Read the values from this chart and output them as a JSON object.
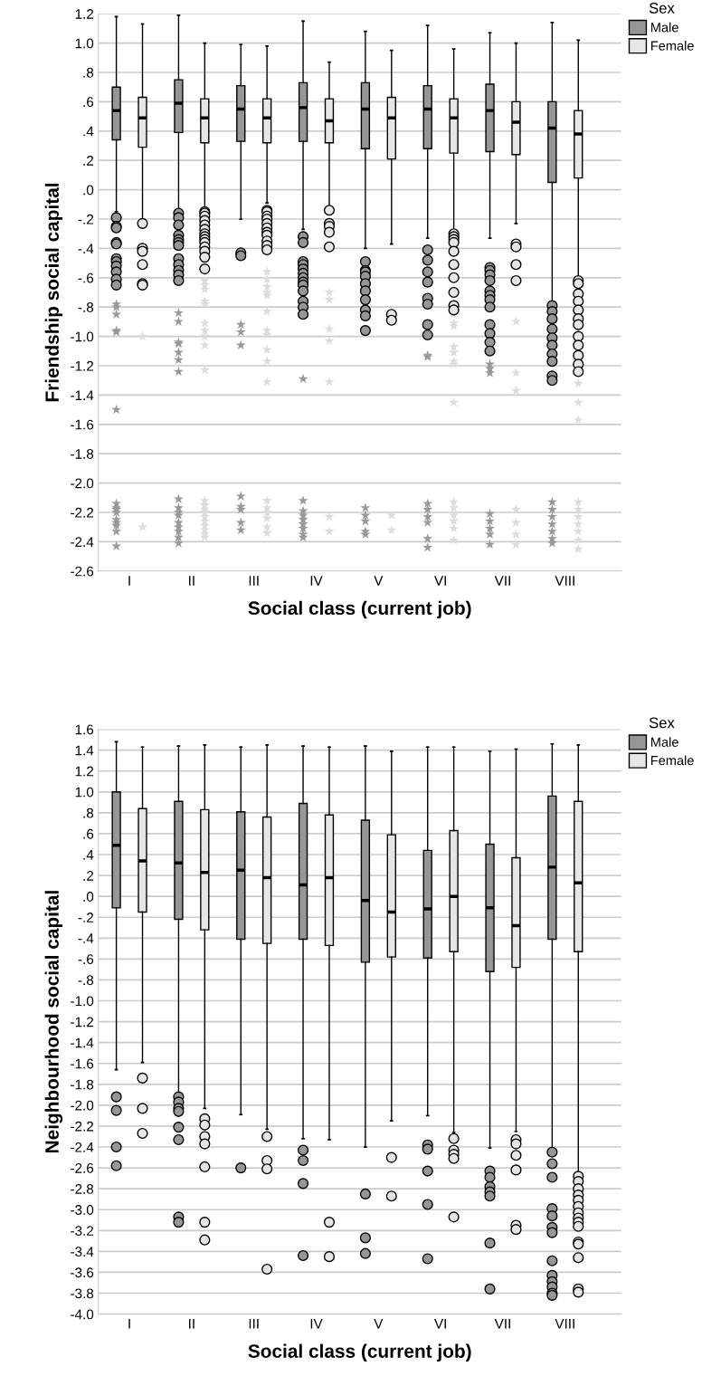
{
  "chart_data": [
    {
      "type": "box",
      "xlabel": "Social class (current job)",
      "ylabel": "Friendship social capital",
      "legend_title": "Sex",
      "legend": "right",
      "grid": "y",
      "marker": "circle",
      "categories": [
        "I",
        "II",
        "III",
        "IV",
        "V",
        "VI",
        "VII",
        "VIII"
      ],
      "ylim": [
        -2.6,
        1.2
      ],
      "yticks": [
        1.2,
        {
          "value": 1,
          "label": "1.0"
        },
        {
          "value": 0.8,
          "label": ".8"
        },
        {
          "value": 0.6,
          "label": ".6"
        },
        {
          "value": 0.4,
          "label": ".4"
        },
        {
          "value": 0.2,
          "label": ".2"
        },
        {
          "value": 0.0,
          "label": ".0"
        },
        {
          "value": -0.2,
          "label": "-.2"
        },
        {
          "value": -0.4,
          "label": "-.4"
        },
        {
          "value": -0.6,
          "label": "-.6"
        },
        {
          "value": -0.8,
          "label": "-.8"
        },
        {
          "value": -1,
          "label": "-1.0"
        },
        -1.2,
        -1.4,
        -1.6,
        -1.8,
        {
          "value": -2,
          "label": "-2.0"
        },
        -2.2,
        -2.4,
        -2.6
      ],
      "series": [
        {
          "name": "Male",
          "color": "#969696",
          "boxes": [
            {
              "low": -0.15,
              "q1": 0.34,
              "median": 0.54,
              "q3": 0.7,
              "high": 1.18,
              "outliers": [
                -0.19,
                -0.25,
                -0.26,
                -0.36,
                -0.37,
                -0.47,
                -0.49,
                -0.52,
                -0.56,
                -0.61,
                -0.65
              ]
            },
            {
              "low": -0.15,
              "q1": 0.39,
              "median": 0.59,
              "q3": 0.75,
              "high": 1.19,
              "outliers": [
                -0.16,
                -0.19,
                -0.24,
                -0.31,
                -0.34,
                -0.36,
                -0.38,
                -0.47,
                -0.51,
                -0.55,
                -0.58,
                -0.62
              ]
            },
            {
              "low": -0.2,
              "q1": 0.33,
              "median": 0.55,
              "q3": 0.71,
              "high": 0.99,
              "outliers": [
                -0.43,
                -0.45
              ]
            },
            {
              "low": -0.27,
              "q1": 0.33,
              "median": 0.56,
              "q3": 0.73,
              "high": 1.15,
              "outliers": [
                -0.32,
                -0.36,
                -0.49,
                -0.51,
                -0.54,
                -0.57,
                -0.6,
                -0.63,
                -0.65,
                -0.69,
                -0.76,
                -0.8,
                -0.85
              ]
            },
            {
              "low": -0.4,
              "q1": 0.28,
              "median": 0.55,
              "q3": 0.73,
              "high": 1.08,
              "outliers": [
                -0.49,
                -0.55,
                -0.56,
                -0.59,
                -0.64,
                -0.69,
                -0.75,
                -0.82,
                -0.86,
                -0.96
              ]
            },
            {
              "low": -0.33,
              "q1": 0.28,
              "median": 0.55,
              "q3": 0.71,
              "high": 1.12,
              "outliers": [
                -0.41,
                -0.48,
                -0.56,
                -0.63,
                -0.74,
                -0.78,
                -0.92,
                -0.99
              ]
            },
            {
              "low": -0.33,
              "q1": 0.26,
              "median": 0.54,
              "q3": 0.72,
              "high": 1.07,
              "outliers": [
                -0.53,
                -0.55,
                -0.58,
                -0.62,
                -0.69,
                -0.72,
                -0.75,
                -0.8,
                -0.92,
                -0.98,
                -1.04,
                -1.1
              ]
            },
            {
              "low": -0.78,
              "q1": 0.05,
              "median": 0.42,
              "q3": 0.6,
              "high": 1.14,
              "outliers": [
                -0.79,
                -0.83,
                -0.88,
                -0.95,
                -1.01,
                -1.06,
                -1.12,
                -1.17,
                -1.27,
                -1.3
              ]
            }
          ]
        },
        {
          "name": "Female",
          "color": "#e6e6e6",
          "boxes": [
            {
              "low": -0.2,
              "q1": 0.29,
              "median": 0.49,
              "q3": 0.63,
              "high": 1.13,
              "outliers": [
                -0.23,
                -0.4,
                -0.42,
                -0.51,
                -0.64,
                -0.65
              ]
            },
            {
              "low": -0.13,
              "q1": 0.32,
              "median": 0.49,
              "q3": 0.62,
              "high": 1.0,
              "outliers": [
                -0.15,
                -0.16,
                -0.18,
                -0.21,
                -0.24,
                -0.27,
                -0.3,
                -0.32,
                -0.34,
                -0.36,
                -0.39,
                -0.42,
                -0.46,
                -0.54
              ]
            },
            {
              "low": -0.09,
              "q1": 0.32,
              "median": 0.49,
              "q3": 0.62,
              "high": 0.98,
              "outliers": [
                -0.14,
                -0.15,
                -0.18,
                -0.2,
                -0.23,
                -0.26,
                -0.29,
                -0.31,
                -0.35,
                -0.38,
                -0.41
              ]
            },
            {
              "low": -0.14,
              "q1": 0.32,
              "median": 0.47,
              "q3": 0.62,
              "high": 0.87,
              "outliers": [
                -0.14,
                -0.23,
                -0.25,
                -0.29,
                -0.39
              ]
            },
            {
              "low": -0.37,
              "q1": 0.21,
              "median": 0.49,
              "q3": 0.63,
              "high": 0.95,
              "outliers": [
                -0.85,
                -0.89
              ]
            },
            {
              "low": -0.28,
              "q1": 0.25,
              "median": 0.49,
              "q3": 0.62,
              "high": 0.96,
              "outliers": [
                -0.3,
                -0.32,
                -0.34,
                -0.36,
                -0.42,
                -0.51,
                -0.6,
                -0.7,
                -0.79,
                -0.82
              ]
            },
            {
              "low": -0.23,
              "q1": 0.24,
              "median": 0.46,
              "q3": 0.6,
              "high": 1.0,
              "outliers": [
                -0.37,
                -0.39,
                -0.51,
                -0.62
              ]
            },
            {
              "low": -0.6,
              "q1": 0.08,
              "median": 0.38,
              "q3": 0.54,
              "high": 1.02,
              "outliers": [
                -0.62,
                -0.64,
                -0.71,
                -0.76,
                -0.82,
                -0.88,
                -0.92,
                -1.0,
                -1.06,
                -1.13,
                -1.19,
                -1.24
              ]
            }
          ]
        },
        {
          "type": "scatter",
          "marker": "star",
          "color": "#999999",
          "x": [
            "I",
            "I",
            "I",
            "I",
            "I",
            "I",
            "I",
            "I",
            "I",
            "I",
            "I",
            "I",
            "I",
            "I",
            "I",
            "II",
            "II",
            "II",
            "II",
            "II",
            "II",
            "II",
            "II",
            "II",
            "II",
            "II",
            "II",
            "II",
            "II",
            "II",
            "II",
            "III",
            "III",
            "III",
            "III",
            "III",
            "III",
            "III",
            "III",
            "IV",
            "IV",
            "IV",
            "IV",
            "IV",
            "IV",
            "IV",
            "IV",
            "IV",
            "V",
            "V",
            "V",
            "V",
            "V",
            "VI",
            "VI",
            "VI",
            "VI",
            "VI",
            "VI",
            "VI",
            "VI",
            "VII",
            "VII",
            "VII",
            "VII",
            "VII",
            "VII",
            "VII",
            "VII",
            "VIII",
            "VIII",
            "VIII",
            "VIII",
            "VIII",
            "VIII",
            "VIII"
          ],
          "values": [
            -0.78,
            -0.8,
            -0.85,
            -0.96,
            -0.97,
            -1.5,
            -2.14,
            -2.17,
            -2.18,
            -2.2,
            -2.25,
            -2.27,
            -2.29,
            -2.33,
            -2.43,
            -0.84,
            -0.9,
            -1.04,
            -1.05,
            -1.11,
            -1.16,
            -1.24,
            -2.11,
            -2.17,
            -2.2,
            -2.22,
            -2.27,
            -2.3,
            -2.33,
            -2.37,
            -2.41,
            -0.92,
            -0.97,
            -1.06,
            -2.09,
            -2.16,
            -2.18,
            -2.27,
            -2.32,
            -1.29,
            -2.12,
            -2.19,
            -2.22,
            -2.25,
            -2.28,
            -2.31,
            -2.35,
            -2.37,
            -2.17,
            -2.22,
            -2.26,
            -2.33,
            -2.35,
            -1.13,
            -1.14,
            -2.14,
            -2.18,
            -2.23,
            -2.27,
            -2.38,
            -2.44,
            -1.19,
            -1.22,
            -1.25,
            -2.21,
            -2.26,
            -2.31,
            -2.35,
            -2.42,
            -2.13,
            -2.18,
            -2.23,
            -2.28,
            -2.33,
            -2.38,
            -2.41
          ]
        },
        {
          "type": "scatter",
          "marker": "star",
          "color": "#dcdcdc",
          "x": [
            "I",
            "I",
            "II",
            "II",
            "II",
            "II",
            "II",
            "II",
            "II",
            "II",
            "II",
            "II",
            "II",
            "II",
            "II",
            "II",
            "II",
            "II",
            "II",
            "II",
            "II",
            "II",
            "III",
            "III",
            "III",
            "III",
            "III",
            "III",
            "III",
            "III",
            "III",
            "III",
            "III",
            "III",
            "III",
            "III",
            "III",
            "III",
            "III",
            "IV",
            "IV",
            "IV",
            "IV",
            "IV",
            "IV",
            "IV",
            "V",
            "V",
            "VI",
            "VI",
            "VI",
            "VI",
            "VI",
            "VI",
            "VI",
            "VI",
            "VI",
            "VI",
            "VI",
            "VI",
            "VI",
            "VI",
            "VII",
            "VII",
            "VII",
            "VII",
            "VII",
            "VII",
            "VII",
            "VIII",
            "VIII",
            "VIII",
            "VIII",
            "VIII",
            "VIII",
            "VIII",
            "VIII",
            "VIII",
            "VIII"
          ],
          "values": [
            -1.0,
            -2.3,
            -0.62,
            -0.65,
            -0.68,
            -0.76,
            -0.78,
            -0.91,
            -0.96,
            -1.0,
            -1.06,
            -1.23,
            -2.12,
            -2.15,
            -2.18,
            -2.2,
            -2.23,
            -2.26,
            -2.29,
            -2.32,
            -2.35,
            -2.37,
            -0.56,
            -0.61,
            -0.66,
            -0.7,
            -0.72,
            -0.83,
            -0.96,
            -0.99,
            -1.09,
            -1.17,
            -1.31,
            -2.12,
            -2.17,
            -2.2,
            -2.24,
            -2.3,
            -2.34,
            -0.7,
            -0.75,
            -0.95,
            -1.03,
            -1.31,
            -2.23,
            -2.33,
            -2.22,
            -2.32,
            -0.85,
            -0.91,
            -0.93,
            -1.07,
            -1.11,
            -1.17,
            -1.19,
            -1.45,
            -2.13,
            -2.17,
            -2.22,
            -2.26,
            -2.31,
            -2.39,
            -0.9,
            -1.25,
            -1.37,
            -2.18,
            -2.27,
            -2.35,
            -2.42,
            -1.32,
            -1.45,
            -1.57,
            -2.13,
            -2.18,
            -2.23,
            -2.28,
            -2.33,
            -2.39,
            -2.45
          ]
        }
      ]
    },
    {
      "type": "box",
      "xlabel": "Social class (current job)",
      "ylabel": "Neighbourhood social capital",
      "legend_title": "Sex",
      "legend": "right",
      "grid": "y",
      "marker": "circle",
      "categories": [
        "I",
        "II",
        "III",
        "IV",
        "V",
        "VI",
        "VII",
        "VIII"
      ],
      "ylim": [
        -4.0,
        1.6
      ],
      "yticks": [
        1.6,
        1.4,
        1.2,
        {
          "value": 1,
          "label": "1.0"
        },
        {
          "value": 0.8,
          "label": ".8"
        },
        {
          "value": 0.6,
          "label": ".6"
        },
        {
          "value": 0.4,
          "label": ".4"
        },
        {
          "value": 0.2,
          "label": ".2"
        },
        {
          "value": 0.0,
          "label": ".0"
        },
        {
          "value": -0.2,
          "label": "-.2"
        },
        {
          "value": -0.4,
          "label": "-.4"
        },
        {
          "value": -0.6,
          "label": "-.6"
        },
        {
          "value": -0.8,
          "label": "-.8"
        },
        {
          "value": -1,
          "label": "-1.0"
        },
        -1.2,
        -1.4,
        -1.6,
        -1.8,
        {
          "value": -2,
          "label": "-2.0"
        },
        -2.2,
        -2.4,
        -2.6,
        -2.8,
        {
          "value": -3,
          "label": "-3.0"
        },
        -3.2,
        -3.4,
        -3.6,
        -3.8,
        {
          "value": -4,
          "label": "-4.0"
        }
      ],
      "series": [
        {
          "name": "Male",
          "color": "#969696",
          "boxes": [
            {
              "low": -1.66,
              "q1": -0.11,
              "median": 0.49,
              "q3": 1.0,
              "high": 1.48,
              "outliers": [
                -1.92,
                -2.05,
                -2.4,
                -2.58
              ]
            },
            {
              "low": -1.88,
              "q1": -0.22,
              "median": 0.32,
              "q3": 0.91,
              "high": 1.44,
              "outliers": [
                -1.92,
                -1.97,
                -2.03,
                -2.06,
                -2.21,
                -2.33,
                -3.07,
                -3.12
              ]
            },
            {
              "low": -2.09,
              "q1": -0.41,
              "median": 0.25,
              "q3": 0.81,
              "high": 1.43,
              "outliers": [
                -2.6
              ]
            },
            {
              "low": -2.32,
              "q1": -0.41,
              "median": 0.11,
              "q3": 0.89,
              "high": 1.44,
              "outliers": [
                -2.43,
                -2.53,
                -2.75,
                -3.44
              ]
            },
            {
              "low": -2.4,
              "q1": -0.63,
              "median": -0.04,
              "q3": 0.73,
              "high": 1.44,
              "outliers": [
                -2.85,
                -3.27,
                -3.42
              ]
            },
            {
              "low": -2.1,
              "q1": -0.59,
              "median": -0.12,
              "q3": 0.44,
              "high": 1.43,
              "outliers": [
                -2.38,
                -2.42,
                -2.63,
                -2.95,
                -3.47
              ]
            },
            {
              "low": -2.41,
              "q1": -0.72,
              "median": -0.11,
              "q3": 0.5,
              "high": 1.39,
              "outliers": [
                -2.63,
                -2.69,
                -2.78,
                -2.83,
                -2.87,
                -3.32,
                -3.76
              ]
            },
            {
              "low": -2.41,
              "q1": -0.41,
              "median": 0.28,
              "q3": 0.96,
              "high": 1.46,
              "outliers": [
                -2.45,
                -2.56,
                -2.69,
                -2.99,
                -3.06,
                -3.17,
                -3.22,
                -3.49,
                -3.63,
                -3.69,
                -3.74,
                -3.8,
                -3.82
              ]
            }
          ]
        },
        {
          "name": "Female",
          "color": "#e6e6e6",
          "boxes": [
            {
              "low": -1.59,
              "q1": -0.15,
              "median": 0.34,
              "q3": 0.84,
              "high": 1.43,
              "outliers": [
                -1.74,
                -2.03,
                -2.27
              ]
            },
            {
              "low": -2.03,
              "q1": -0.32,
              "median": 0.23,
              "q3": 0.83,
              "high": 1.45,
              "outliers": [
                -2.13,
                -2.19,
                -2.3,
                -2.37,
                -2.59,
                -3.12,
                -3.29
              ]
            },
            {
              "low": -2.23,
              "q1": -0.45,
              "median": 0.18,
              "q3": 0.76,
              "high": 1.45,
              "outliers": [
                -2.3,
                -2.53,
                -2.61,
                -3.57
              ]
            },
            {
              "low": -2.33,
              "q1": -0.47,
              "median": 0.18,
              "q3": 0.78,
              "high": 1.43,
              "outliers": [
                -3.12,
                -3.45
              ]
            },
            {
              "low": -2.15,
              "q1": -0.58,
              "median": -0.15,
              "q3": 0.59,
              "high": 1.39,
              "outliers": [
                -2.5,
                -2.87
              ]
            },
            {
              "low": -2.26,
              "q1": -0.53,
              "median": 0.0,
              "q3": 0.63,
              "high": 1.43,
              "outliers": [
                -2.32,
                -2.43,
                -2.47,
                -2.51,
                -3.07
              ]
            },
            {
              "low": -2.25,
              "q1": -0.68,
              "median": -0.28,
              "q3": 0.37,
              "high": 1.41,
              "outliers": [
                -2.33,
                -2.37,
                -2.48,
                -2.62,
                -3.15,
                -3.19
              ]
            },
            {
              "low": -2.66,
              "q1": -0.53,
              "median": 0.13,
              "q3": 0.91,
              "high": 1.45,
              "outliers": [
                -2.68,
                -2.73,
                -2.8,
                -2.86,
                -2.91,
                -2.97,
                -3.03,
                -3.08,
                -3.12,
                -3.16,
                -3.31,
                -3.33,
                -3.46,
                -3.76,
                -3.79
              ]
            }
          ]
        }
      ]
    }
  ]
}
